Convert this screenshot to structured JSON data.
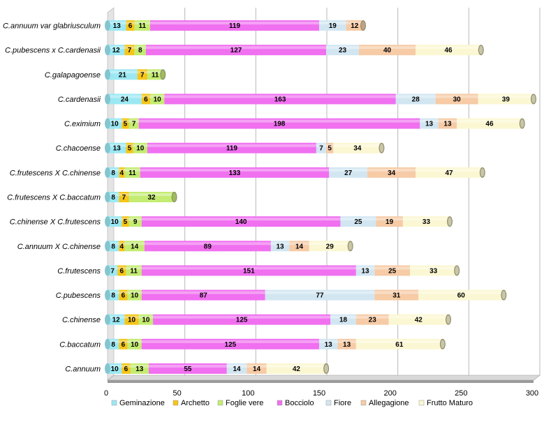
{
  "chart_data": {
    "type": "bar",
    "orientation": "horizontal",
    "stacked": true,
    "title": "",
    "xlabel": "",
    "ylabel": "",
    "xlim": [
      0,
      300
    ],
    "xticks": [
      "0",
      "50",
      "100",
      "150",
      "200",
      "250",
      "300"
    ],
    "grid": "vertical",
    "legend_position": "bottom",
    "categories": [
      "C.annuum var glabriusculum",
      "C.pubescens x C.cardenasii",
      "C.galapagoense",
      "C.cardenasii",
      "C.eximium",
      "C.chacoense",
      "C.frutescens X C.chinense",
      "C.frutescens X C.baccatum",
      "C.chinense X C.frutescens",
      "C.annuum X C.chinense",
      "C.frutescens",
      "C.pubescens",
      "C.chinense",
      "C.baccatum",
      "C.annuum"
    ],
    "series": [
      {
        "name": "Geminazione",
        "color": "#9be8f3",
        "values": [
          13,
          12,
          21,
          24,
          10,
          13,
          8,
          8,
          10,
          8,
          7,
          8,
          12,
          8,
          10
        ]
      },
      {
        "name": "Archetto",
        "color": "#f5c518",
        "values": [
          6,
          7,
          7,
          6,
          5,
          5,
          4,
          7,
          5,
          4,
          6,
          6,
          10,
          6,
          6
        ]
      },
      {
        "name": "Foglie vere",
        "color": "#c4ec72",
        "values": [
          11,
          8,
          11,
          10,
          7,
          10,
          11,
          32,
          9,
          14,
          11,
          10,
          10,
          10,
          13
        ]
      },
      {
        "name": "Bocciolo",
        "color": "#f070f0",
        "values": [
          119,
          127,
          null,
          163,
          198,
          119,
          133,
          null,
          140,
          89,
          151,
          87,
          125,
          125,
          55
        ]
      },
      {
        "name": "Fiore",
        "color": "#d2e6f2",
        "values": [
          19,
          23,
          null,
          28,
          13,
          7,
          27,
          null,
          25,
          13,
          13,
          77,
          18,
          13,
          14
        ]
      },
      {
        "name": "Allegagione",
        "color": "#f6cba6",
        "values": [
          12,
          40,
          null,
          30,
          13,
          5,
          34,
          null,
          19,
          14,
          25,
          31,
          23,
          13,
          14
        ]
      },
      {
        "name": "Frutto Maturo",
        "color": "#fbf7d2",
        "values": [
          null,
          46,
          null,
          39,
          46,
          34,
          47,
          null,
          33,
          29,
          33,
          60,
          42,
          61,
          42
        ]
      }
    ]
  }
}
